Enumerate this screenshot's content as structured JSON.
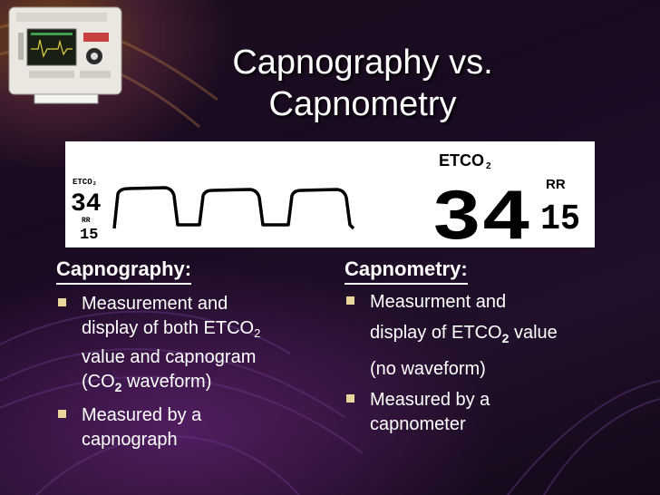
{
  "slide": {
    "title_line1": "Capnography vs.",
    "title_line2": "Capnometry"
  },
  "monitor": {
    "small_label": "ETCO₂",
    "small_value": "34",
    "small_rr_label": "RR",
    "small_rr_value": "15",
    "big_label": "ETCO",
    "big_label_sub": "2",
    "big_value": "34",
    "rr_label": "RR",
    "rr_value": "15"
  },
  "left": {
    "heading": "Capnography:",
    "bullet1": {
      "line1": "Measurement and",
      "line2_pre": "display of both ETCO",
      "line2_sub": "2",
      "line3": "value and capnogram",
      "line4_pre": "(CO",
      "line4_sub": "2",
      "line4_post": " waveform)"
    },
    "bullet2": {
      "line1": "Measured by a",
      "line2": "capnograph"
    }
  },
  "right": {
    "heading": "Capnometry:",
    "bullet1": {
      "line1": "Measurment and",
      "line2_pre": "display of ETCO",
      "line2_sub": "2",
      "line2_post": " value",
      "line3": "(no waveform)"
    },
    "bullet2": {
      "line1": "Measured by a",
      "line2": "capnometer"
    }
  },
  "colors": {
    "bullet": "#e8d79a",
    "text": "#ffffff",
    "monitor_bg": "#ffffff"
  }
}
